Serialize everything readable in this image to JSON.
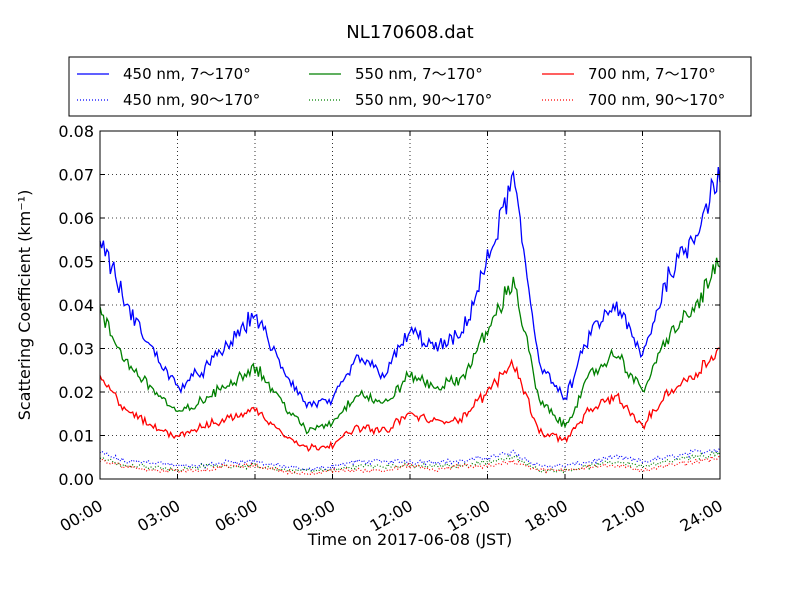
{
  "chart_data": {
    "type": "line",
    "title": "NL170608.dat",
    "xlabel": "Time on 2017-06-08 (JST)",
    "ylabel": "Scattering Coefficient (km⁻¹)",
    "xlim": [
      "00:00",
      "24:00"
    ],
    "ylim": [
      0,
      0.08
    ],
    "xticks": [
      "00:00",
      "03:00",
      "06:00",
      "09:00",
      "12:00",
      "15:00",
      "18:00",
      "21:00",
      "24:00"
    ],
    "yticks": [
      "0.00",
      "0.01",
      "0.02",
      "0.03",
      "0.04",
      "0.05",
      "0.06",
      "0.07",
      "0.08"
    ],
    "grid": true,
    "legend_position": "top",
    "x": [
      "00:00",
      "01:00",
      "02:00",
      "03:00",
      "04:00",
      "05:00",
      "06:00",
      "07:00",
      "08:00",
      "09:00",
      "10:00",
      "11:00",
      "12:00",
      "13:00",
      "14:00",
      "15:00",
      "16:00",
      "17:00",
      "18:00",
      "19:00",
      "20:00",
      "21:00",
      "22:00",
      "23:00",
      "24:00"
    ],
    "series": [
      {
        "name": "450 nm, 7～170°",
        "color": "#0000ff",
        "style": "solid",
        "values": [
          0.056,
          0.04,
          0.03,
          0.021,
          0.025,
          0.031,
          0.038,
          0.026,
          0.017,
          0.018,
          0.028,
          0.024,
          0.034,
          0.03,
          0.033,
          0.05,
          0.069,
          0.027,
          0.018,
          0.034,
          0.04,
          0.028,
          0.047,
          0.056,
          0.071
        ]
      },
      {
        "name": "450 nm, 90～170°",
        "color": "#0000ff",
        "style": "dotted",
        "values": [
          0.006,
          0.004,
          0.004,
          0.003,
          0.003,
          0.004,
          0.004,
          0.003,
          0.002,
          0.003,
          0.004,
          0.004,
          0.004,
          0.004,
          0.004,
          0.005,
          0.006,
          0.003,
          0.003,
          0.004,
          0.005,
          0.004,
          0.005,
          0.006,
          0.007
        ]
      },
      {
        "name": "550 nm, 7～170°",
        "color": "#008000",
        "style": "solid",
        "values": [
          0.038,
          0.027,
          0.021,
          0.015,
          0.018,
          0.022,
          0.026,
          0.018,
          0.011,
          0.013,
          0.02,
          0.017,
          0.024,
          0.021,
          0.023,
          0.034,
          0.046,
          0.018,
          0.012,
          0.024,
          0.029,
          0.02,
          0.033,
          0.039,
          0.05
        ]
      },
      {
        "name": "550 nm, 90～170°",
        "color": "#008000",
        "style": "dotted",
        "values": [
          0.005,
          0.003,
          0.003,
          0.002,
          0.003,
          0.003,
          0.003,
          0.002,
          0.002,
          0.002,
          0.003,
          0.003,
          0.003,
          0.003,
          0.003,
          0.004,
          0.005,
          0.002,
          0.002,
          0.003,
          0.004,
          0.003,
          0.004,
          0.005,
          0.006
        ]
      },
      {
        "name": "700 nm, 7～170°",
        "color": "#ff0000",
        "style": "solid",
        "values": [
          0.023,
          0.016,
          0.012,
          0.01,
          0.012,
          0.014,
          0.016,
          0.011,
          0.007,
          0.008,
          0.012,
          0.011,
          0.015,
          0.013,
          0.014,
          0.02,
          0.027,
          0.011,
          0.009,
          0.016,
          0.019,
          0.012,
          0.02,
          0.024,
          0.03
        ]
      },
      {
        "name": "700 nm, 90～170°",
        "color": "#ff0000",
        "style": "dotted",
        "values": [
          0.004,
          0.003,
          0.002,
          0.002,
          0.002,
          0.003,
          0.003,
          0.002,
          0.001,
          0.002,
          0.002,
          0.002,
          0.003,
          0.002,
          0.003,
          0.003,
          0.004,
          0.002,
          0.002,
          0.003,
          0.003,
          0.002,
          0.003,
          0.004,
          0.005
        ]
      }
    ]
  }
}
